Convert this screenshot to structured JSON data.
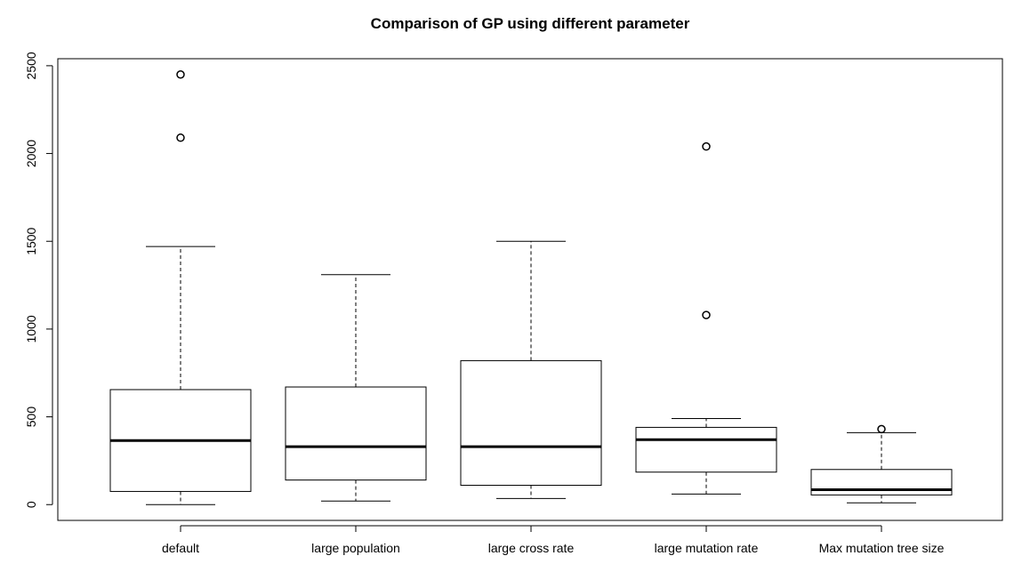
{
  "chart_data": {
    "type": "boxplot",
    "title": "Comparison of GP using different parameter",
    "xlabel": "",
    "ylabel": "",
    "ylim": [
      -90,
      2540
    ],
    "yticks": [
      0,
      500,
      1000,
      1500,
      2000,
      2500
    ],
    "categories": [
      "default",
      "large population",
      "large cross rate",
      "large mutation rate",
      "Max mutation tree size"
    ],
    "boxes": [
      {
        "category": "default",
        "whisker_low": 0,
        "q1": 75,
        "median": 365,
        "q3": 655,
        "whisker_high": 1470,
        "outliers": [
          2090,
          2450
        ]
      },
      {
        "category": "large population",
        "whisker_low": 20,
        "q1": 140,
        "median": 330,
        "q3": 670,
        "whisker_high": 1310,
        "outliers": []
      },
      {
        "category": "large cross rate",
        "whisker_low": 35,
        "q1": 110,
        "median": 330,
        "q3": 820,
        "whisker_high": 1500,
        "outliers": []
      },
      {
        "category": "large mutation rate",
        "whisker_low": 60,
        "q1": 185,
        "median": 370,
        "q3": 440,
        "whisker_high": 490,
        "outliers": [
          1080,
          2040
        ]
      },
      {
        "category": "Max mutation tree size",
        "whisker_low": 10,
        "q1": 55,
        "median": 85,
        "q3": 200,
        "whisker_high": 410,
        "outliers": [
          430
        ]
      }
    ],
    "grid": false,
    "legend": "none"
  }
}
